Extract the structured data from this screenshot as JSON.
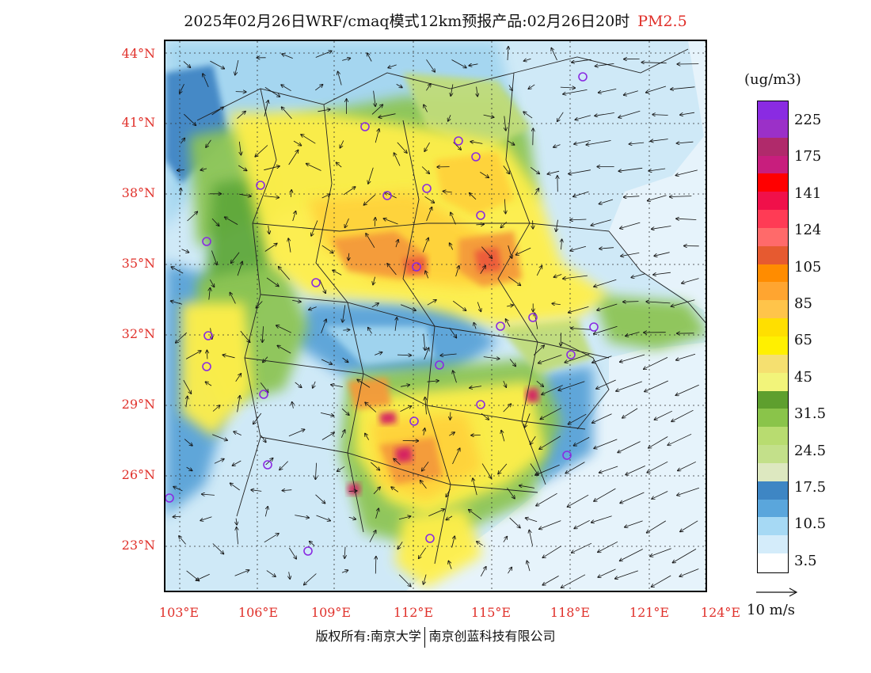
{
  "header": {
    "title": "2025年02月26日WRF/cmaq模式12km预报产品:02月26日20时",
    "pollutant": "PM2.5"
  },
  "map": {
    "lat_labels": [
      "44°N",
      "41°N",
      "38°N",
      "35°N",
      "32°N",
      "29°N",
      "26°N",
      "23°N"
    ],
    "lon_labels": [
      "103°E",
      "106°E",
      "109°E",
      "112°E",
      "115°E",
      "118°E",
      "121°E",
      "124°E"
    ],
    "colors": {
      "ocean": "#e6f3fb",
      "clean": "#cfe9f7",
      "light_blue": "#a3d6f0",
      "mid_blue": "#5aa3d8",
      "dark_blue": "#3f85c4",
      "green_light": "#c0dc7a",
      "green": "#8dc555",
      "green_dark": "#5ea83a",
      "yellow": "#ffef4a",
      "yellow_orange": "#ffd23a",
      "orange": "#f49a3b",
      "red_orange": "#ec5a3a",
      "magenta": "#d41e63",
      "site_marker": "#8a2be2"
    }
  },
  "colorbar": {
    "unit": "(ug/m3)",
    "segments": [
      "#8a2be2",
      "#9b30c8",
      "#b02a6b",
      "#c81e7d",
      "#ff0000",
      "#f0104a",
      "#ff3b55",
      "#ff6a6a",
      "#e65a30",
      "#ff8c00",
      "#ffa530",
      "#ffc44a",
      "#ffdf00",
      "#fff000",
      "#f5e070",
      "#f2f47a",
      "#5e9f2e",
      "#8ac44a",
      "#b8dc70",
      "#c3e08a",
      "#dde8c0",
      "#3e86c4",
      "#5aa6dc",
      "#a6d9f4",
      "#d4ecfa",
      "#ffffff"
    ],
    "labels": [
      "225",
      "175",
      "141",
      "124",
      "105",
      "85",
      "65",
      "45",
      "31.5",
      "24.5",
      "17.5",
      "10.5",
      "3.5"
    ]
  },
  "wind": {
    "label": "10 m/s"
  },
  "footer": {
    "left": "版权所有:南京大学",
    "right": "南京创蓝科技有限公司"
  }
}
